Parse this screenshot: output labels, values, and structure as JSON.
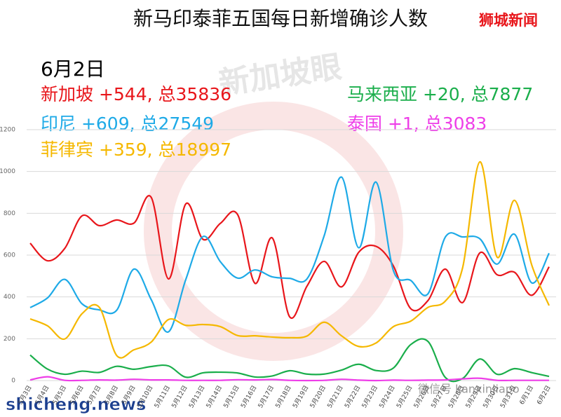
{
  "chart_data": {
    "type": "line",
    "title": "新马印泰菲五国每日新增确诊人数",
    "brand": "狮城新闻",
    "date_label": "6月2日",
    "annotations": [
      {
        "text": "新加坡 +544, 总35836",
        "color": "#e8161b"
      },
      {
        "text": "印尼 +609, 总27549",
        "color": "#1eaae7"
      },
      {
        "text": "菲律宾 +359, 总18997",
        "color": "#f5b800"
      },
      {
        "text": "马来西亚 +20, 总7877",
        "color": "#1aae4b"
      },
      {
        "text": "泰国 +1, 总3083",
        "color": "#ee3ee8"
      }
    ],
    "watermarks": [
      "新加坡眼",
      "微信号 kanxinjiapo",
      "shicheng.news"
    ],
    "categories": [
      "5月3日",
      "5月4日",
      "5月5日",
      "5月6日",
      "5月7日",
      "5月8日",
      "5月9日",
      "5月10日",
      "5月11日",
      "5月12日",
      "5月13日",
      "5月14日",
      "5月15日",
      "5月16日",
      "5月17日",
      "5月18日",
      "5月19日",
      "5月20日",
      "5月21日",
      "5月22日",
      "5月23日",
      "5月24日",
      "5月25日",
      "5月26日",
      "5月27日",
      "5月28日",
      "5月29日",
      "5月30日",
      "5月31日",
      "6月1日",
      "6月2日"
    ],
    "series": [
      {
        "color": "#e8161b",
        "values": [
          657,
          573,
          632,
          788,
          741,
          768,
          753,
          876,
          486,
          845,
          675,
          752,
          793,
          465,
          682,
          305,
          451,
          570,
          448,
          614,
          642,
          548,
          344,
          383,
          533,
          373,
          611,
          506,
          518,
          408,
          544
        ]
      },
      {
        "color": "#1eaae7",
        "values": [
          349,
          395,
          484,
          367,
          338,
          336,
          533,
          387,
          233,
          484,
          689,
          568,
          490,
          529,
          496,
          489,
          486,
          693,
          973,
          635,
          949,
          526,
          479,
          415,
          686,
          687,
          678,
          557,
          700,
          467,
          609
        ]
      },
      {
        "color": "#f5b800",
        "values": [
          295,
          262,
          199,
          320,
          350,
          120,
          147,
          184,
          292,
          264,
          268,
          258,
          215,
          214,
          208,
          205,
          213,
          279,
          214,
          163,
          180,
          258,
          284,
          350,
          380,
          539,
          1046,
          590,
          862,
          552,
          359
        ]
      },
      {
        "color": "#1aae4b",
        "values": [
          122,
          55,
          30,
          45,
          39,
          68,
          54,
          67,
          70,
          16,
          37,
          40,
          36,
          17,
          22,
          47,
          31,
          31,
          50,
          78,
          48,
          60,
          172,
          187,
          15,
          10,
          103,
          30,
          57,
          38,
          20
        ]
      },
      {
        "color": "#ee3ee8",
        "values": [
          3,
          18,
          1,
          1,
          3,
          2,
          6,
          3,
          3,
          1,
          1,
          1,
          4,
          3,
          5,
          1,
          0,
          1,
          6,
          2,
          0,
          2,
          1,
          2,
          3,
          8,
          11,
          1,
          1,
          1,
          1
        ]
      }
    ],
    "ylim": [
      0,
      1200
    ],
    "yticks": [
      0,
      200,
      400,
      600,
      800,
      1000,
      1200
    ],
    "grid": true
  }
}
